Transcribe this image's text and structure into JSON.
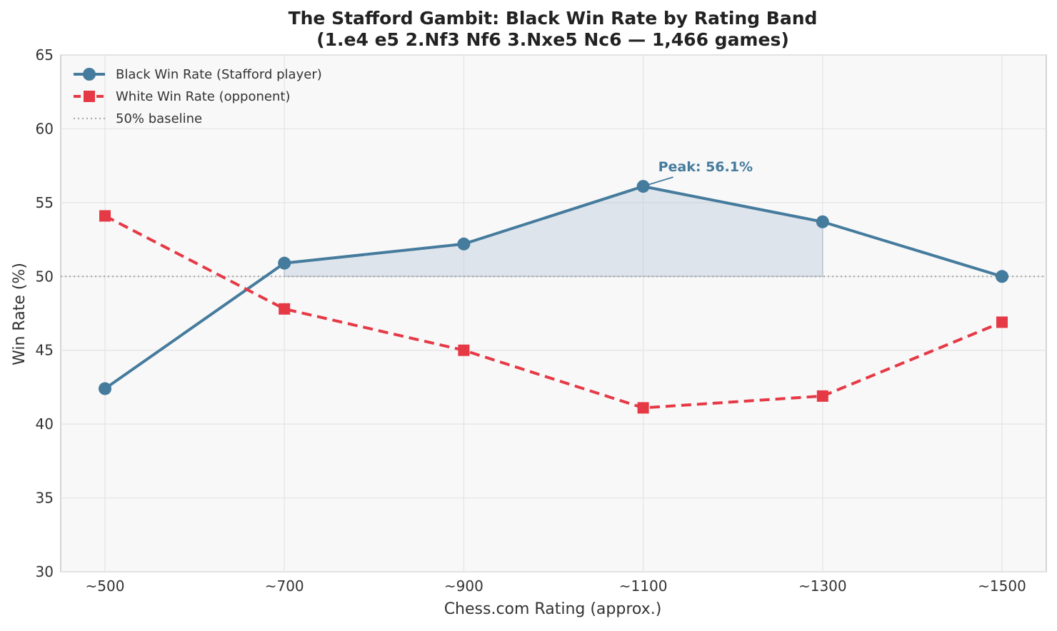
{
  "chart_data": {
    "type": "line",
    "title_line1": "The Stafford Gambit: Black Win Rate by Rating Band",
    "title_line2": "(1.e4 e5 2.Nf3 Nf6 3.Nxe5 Nc6 — 1,466 games)",
    "xlabel": "Chess.com Rating (approx.)",
    "ylabel": "Win Rate (%)",
    "categories": [
      "~500",
      "~700",
      "~900",
      "~1100",
      "~1300",
      "~1500"
    ],
    "ylim": [
      30,
      65
    ],
    "yticks": [
      30,
      35,
      40,
      45,
      50,
      55,
      60,
      65
    ],
    "grid": true,
    "legend_position": "top-left",
    "series": [
      {
        "name": "Black Win Rate (Stafford player)",
        "values": [
          42.4,
          50.9,
          52.2,
          56.1,
          53.7,
          50.0
        ],
        "color": "#457b9d",
        "style": "solid",
        "marker": "circle"
      },
      {
        "name": "White Win Rate (opponent)",
        "values": [
          54.1,
          47.8,
          45.0,
          41.1,
          41.9,
          46.9
        ],
        "color": "#e63946",
        "style": "dashed",
        "marker": "square"
      }
    ],
    "baseline": {
      "name": "50% baseline",
      "value": 50,
      "color": "#aaaaaa",
      "style": "dotted"
    },
    "annotation": {
      "text": "Peak: 56.1%",
      "category": "~1100",
      "value": 56.1,
      "color": "#457b9d"
    },
    "fill_region": {
      "from": "~700",
      "to": "~1300",
      "color": "#aebfd4"
    }
  }
}
